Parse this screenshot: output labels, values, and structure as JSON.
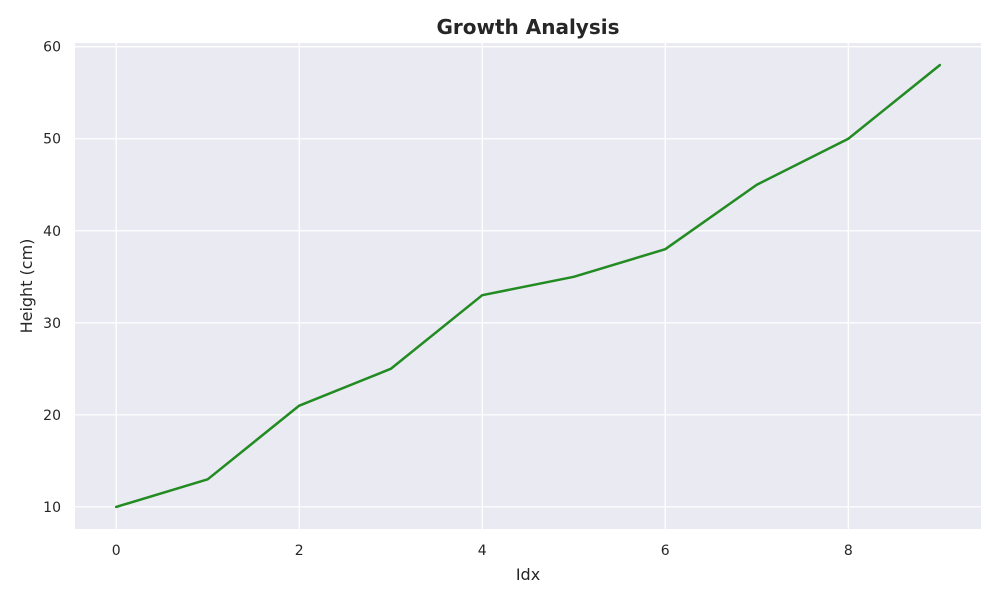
{
  "chart_data": {
    "type": "line",
    "title": "Growth Analysis",
    "xlabel": "Idx",
    "ylabel": "Height (cm)",
    "x": [
      0,
      1,
      2,
      3,
      4,
      5,
      6,
      7,
      8,
      9
    ],
    "series": [
      {
        "values": [
          10,
          13,
          21,
          25,
          33,
          35,
          38,
          45,
          50,
          58
        ],
        "color": "#228b22"
      }
    ],
    "xlim": [
      -0.45,
      9.45
    ],
    "ylim": [
      7.6,
      60.4
    ],
    "xticks": [
      0,
      2,
      4,
      6,
      8
    ],
    "yticks": [
      10,
      20,
      30,
      40,
      50,
      60
    ],
    "grid": true,
    "background_color": "#eaeaf2",
    "grid_color": "#ffffff"
  }
}
